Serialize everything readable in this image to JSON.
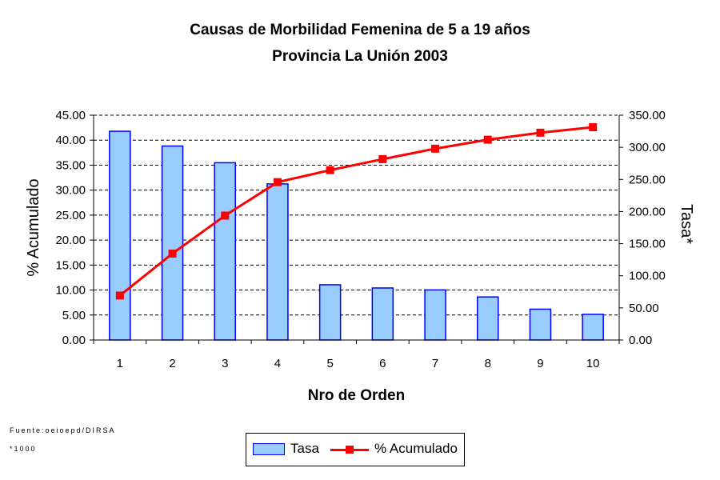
{
  "chart_data": {
    "type": "bar+line",
    "title": "Causas de Morbilidad Femenina de 5 a 19 años",
    "subtitle": "Provincia La Unión 2003",
    "xlabel": "Nro de Orden",
    "ylabel_left": "% Acumulado",
    "ylabel_right": "Tasa*",
    "categories": [
      "1",
      "2",
      "3",
      "4",
      "5",
      "6",
      "7",
      "8",
      "9",
      "10"
    ],
    "left_axis": {
      "min": 0,
      "max": 45,
      "step": 5,
      "ticks": [
        "0.00",
        "5.00",
        "10.00",
        "15.00",
        "20.00",
        "25.00",
        "30.00",
        "35.00",
        "40.00",
        "45.00"
      ]
    },
    "right_axis": {
      "min": 0,
      "max": 350,
      "step": 50,
      "ticks": [
        "0.00",
        "50.00",
        "100.00",
        "150.00",
        "200.00",
        "250.00",
        "300.00",
        "350.00"
      ]
    },
    "series": [
      {
        "name": "Tasa",
        "type": "bar",
        "axis": "right",
        "color": "#99ccff",
        "border": "#0000ff",
        "values": [
          325,
          302,
          276,
          243,
          86,
          81,
          78,
          67,
          48,
          40
        ]
      },
      {
        "name": "% Acumulado",
        "type": "line",
        "axis": "left",
        "color": "#ff0000",
        "values": [
          8.9,
          17.3,
          24.9,
          31.6,
          34.0,
          36.2,
          38.3,
          40.1,
          41.5,
          42.6
        ]
      }
    ],
    "grid": true,
    "legend_position": "bottom-center"
  },
  "footnotes": {
    "source": "Fuente:oeioepd/DIRSA",
    "note": "*1000"
  }
}
